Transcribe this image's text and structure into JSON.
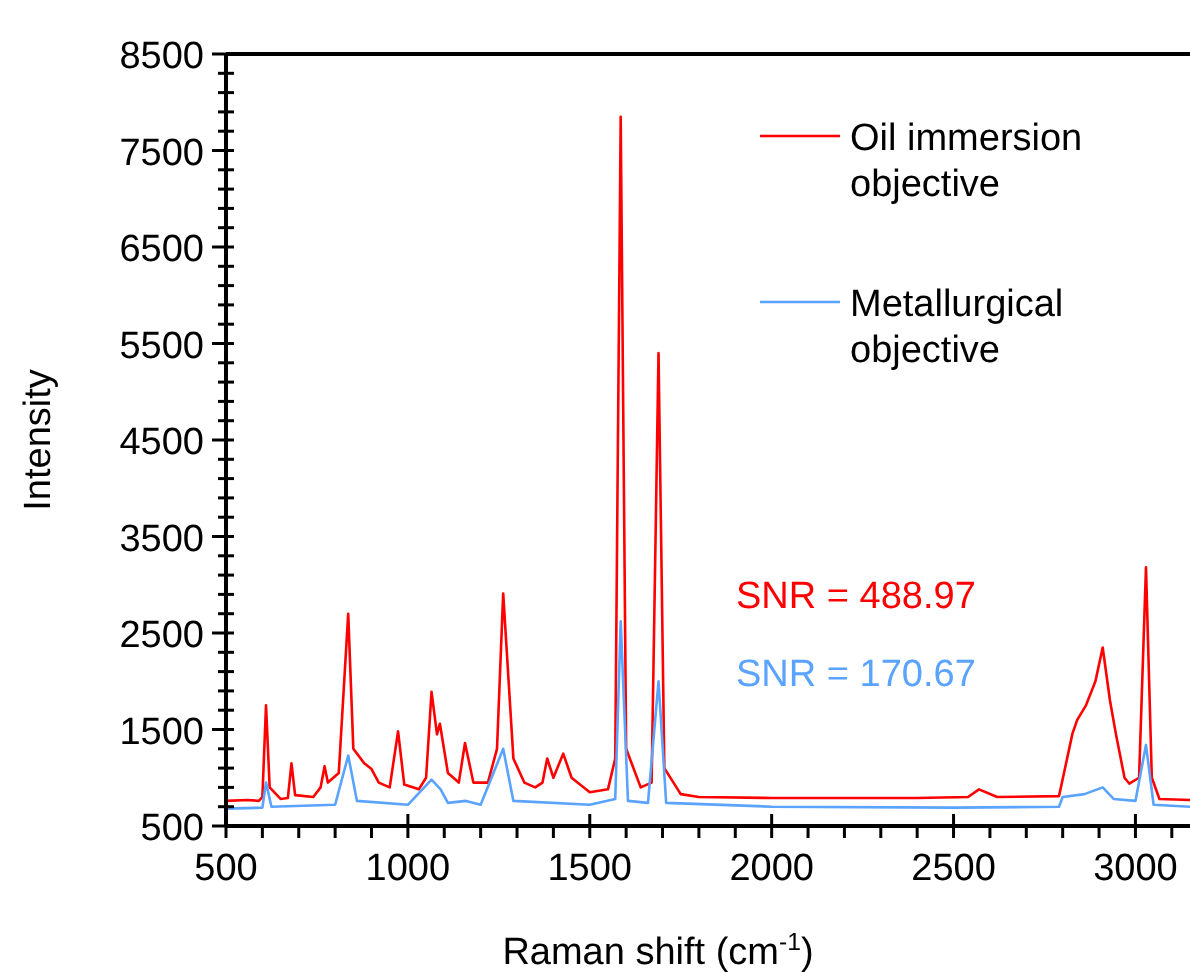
{
  "chart_data": {
    "type": "line",
    "xlabel": "Raman shift (cm$^{-1}$)",
    "ylabel": "Intensity",
    "xlim": [
      500,
      3150
    ],
    "ylim": [
      500,
      8500
    ],
    "xticks": [
      500,
      {
        "value": 600,
        "label": null
      },
      {
        "value": 700,
        "label": null
      },
      {
        "value": 800,
        "label": null
      },
      {
        "value": 900,
        "label": null
      },
      1000,
      {
        "value": 1100,
        "label": null
      },
      {
        "value": 1200,
        "label": null
      },
      {
        "value": 1300,
        "label": null
      },
      {
        "value": 1400,
        "label": null
      },
      1500,
      {
        "value": 1600,
        "label": null
      },
      {
        "value": 1700,
        "label": null
      },
      {
        "value": 1800,
        "label": null
      },
      {
        "value": 1900,
        "label": null
      },
      2000,
      {
        "value": 2100,
        "label": null
      },
      {
        "value": 2200,
        "label": null
      },
      {
        "value": 2300,
        "label": null
      },
      {
        "value": 2400,
        "label": null
      },
      2500,
      {
        "value": 2600,
        "label": null
      },
      {
        "value": 2700,
        "label": null
      },
      {
        "value": 2800,
        "label": null
      },
      {
        "value": 2900,
        "label": null
      },
      3000,
      {
        "value": 3100,
        "label": null
      }
    ],
    "yticks": [
      500,
      {
        "value": 700,
        "label": null
      },
      {
        "value": 900,
        "label": null
      },
      {
        "value": 1100,
        "label": null
      },
      {
        "value": 1300,
        "label": null
      },
      1500,
      {
        "value": 1700,
        "label": null
      },
      {
        "value": 1900,
        "label": null
      },
      {
        "value": 2100,
        "label": null
      },
      {
        "value": 2300,
        "label": null
      },
      2500,
      {
        "value": 2700,
        "label": null
      },
      {
        "value": 2900,
        "label": null
      },
      {
        "value": 3100,
        "label": null
      },
      {
        "value": 3300,
        "label": null
      },
      3500,
      {
        "value": 3700,
        "label": null
      },
      {
        "value": 3900,
        "label": null
      },
      {
        "value": 4100,
        "label": null
      },
      {
        "value": 4300,
        "label": null
      },
      4500,
      {
        "value": 4700,
        "label": null
      },
      {
        "value": 4900,
        "label": null
      },
      {
        "value": 5100,
        "label": null
      },
      {
        "value": 5300,
        "label": null
      },
      5500,
      {
        "value": 5700,
        "label": null
      },
      {
        "value": 5900,
        "label": null
      },
      {
        "value": 6100,
        "label": null
      },
      {
        "value": 6300,
        "label": null
      },
      6500,
      {
        "value": 6700,
        "label": null
      },
      {
        "value": 6900,
        "label": null
      },
      {
        "value": 7100,
        "label": null
      },
      {
        "value": 7300,
        "label": null
      },
      7500,
      {
        "value": 7700,
        "label": null
      },
      {
        "value": 7900,
        "label": null
      },
      {
        "value": 8100,
        "label": null
      },
      {
        "value": 8300,
        "label": null
      },
      8500
    ],
    "grid": false,
    "legend": "top right",
    "marker": "none",
    "line_style": "solid",
    "annotations": [
      "SNR = 488.97",
      "SNR = 170.67"
    ],
    "series": [
      {
        "name": "Oil immersion objective",
        "color": "#ff0000",
        "x": [
          500,
          560,
          590,
          600,
          610,
          620,
          650,
          670,
          680,
          690,
          740,
          760,
          771,
          780,
          810,
          836,
          850,
          880,
          900,
          920,
          950,
          973,
          990,
          1030,
          1050,
          1065,
          1080,
          1088,
          1110,
          1140,
          1157,
          1180,
          1220,
          1245,
          1262,
          1290,
          1320,
          1350,
          1370,
          1383,
          1400,
          1427,
          1450,
          1500,
          1550,
          1570,
          1585,
          1600,
          1640,
          1670,
          1689,
          1705,
          1750,
          1800,
          2000,
          2200,
          2400,
          2540,
          2570,
          2620,
          2790,
          2827,
          2840,
          2864,
          2890,
          2910,
          2930,
          2946,
          2970,
          2983,
          3010,
          3029,
          3045,
          3066,
          3150
        ],
        "values": [
          760,
          770,
          760,
          800,
          1750,
          900,
          780,
          790,
          1150,
          820,
          800,
          900,
          1120,
          950,
          1050,
          2700,
          1300,
          1150,
          1090,
          950,
          900,
          1480,
          930,
          880,
          1000,
          1890,
          1450,
          1560,
          1050,
          950,
          1360,
          950,
          950,
          1300,
          2910,
          1200,
          950,
          900,
          950,
          1200,
          1000,
          1250,
          1000,
          850,
          880,
          1200,
          7850,
          1300,
          900,
          950,
          5400,
          1100,
          830,
          800,
          790,
          790,
          790,
          800,
          880,
          800,
          810,
          1460,
          1600,
          1750,
          2000,
          2350,
          1800,
          1460,
          1000,
          940,
          1000,
          3180,
          1000,
          780,
          770
        ]
      },
      {
        "name": "Metallurgical objective",
        "color": "#5aa3ff",
        "x": [
          500,
          600,
          610,
          625,
          800,
          836,
          860,
          1000,
          1065,
          1090,
          1110,
          1160,
          1200,
          1262,
          1290,
          1500,
          1570,
          1585,
          1605,
          1660,
          1689,
          1710,
          2000,
          2500,
          2790,
          2800,
          2860,
          2910,
          2940,
          3000,
          3029,
          3050,
          3150
        ],
        "values": [
          680,
          690,
          950,
          700,
          720,
          1230,
          760,
          720,
          980,
          880,
          740,
          760,
          720,
          1300,
          760,
          720,
          780,
          2620,
          760,
          740,
          2000,
          740,
          700,
          690,
          700,
          800,
          830,
          900,
          780,
          760,
          1340,
          720,
          700
        ]
      }
    ]
  }
}
